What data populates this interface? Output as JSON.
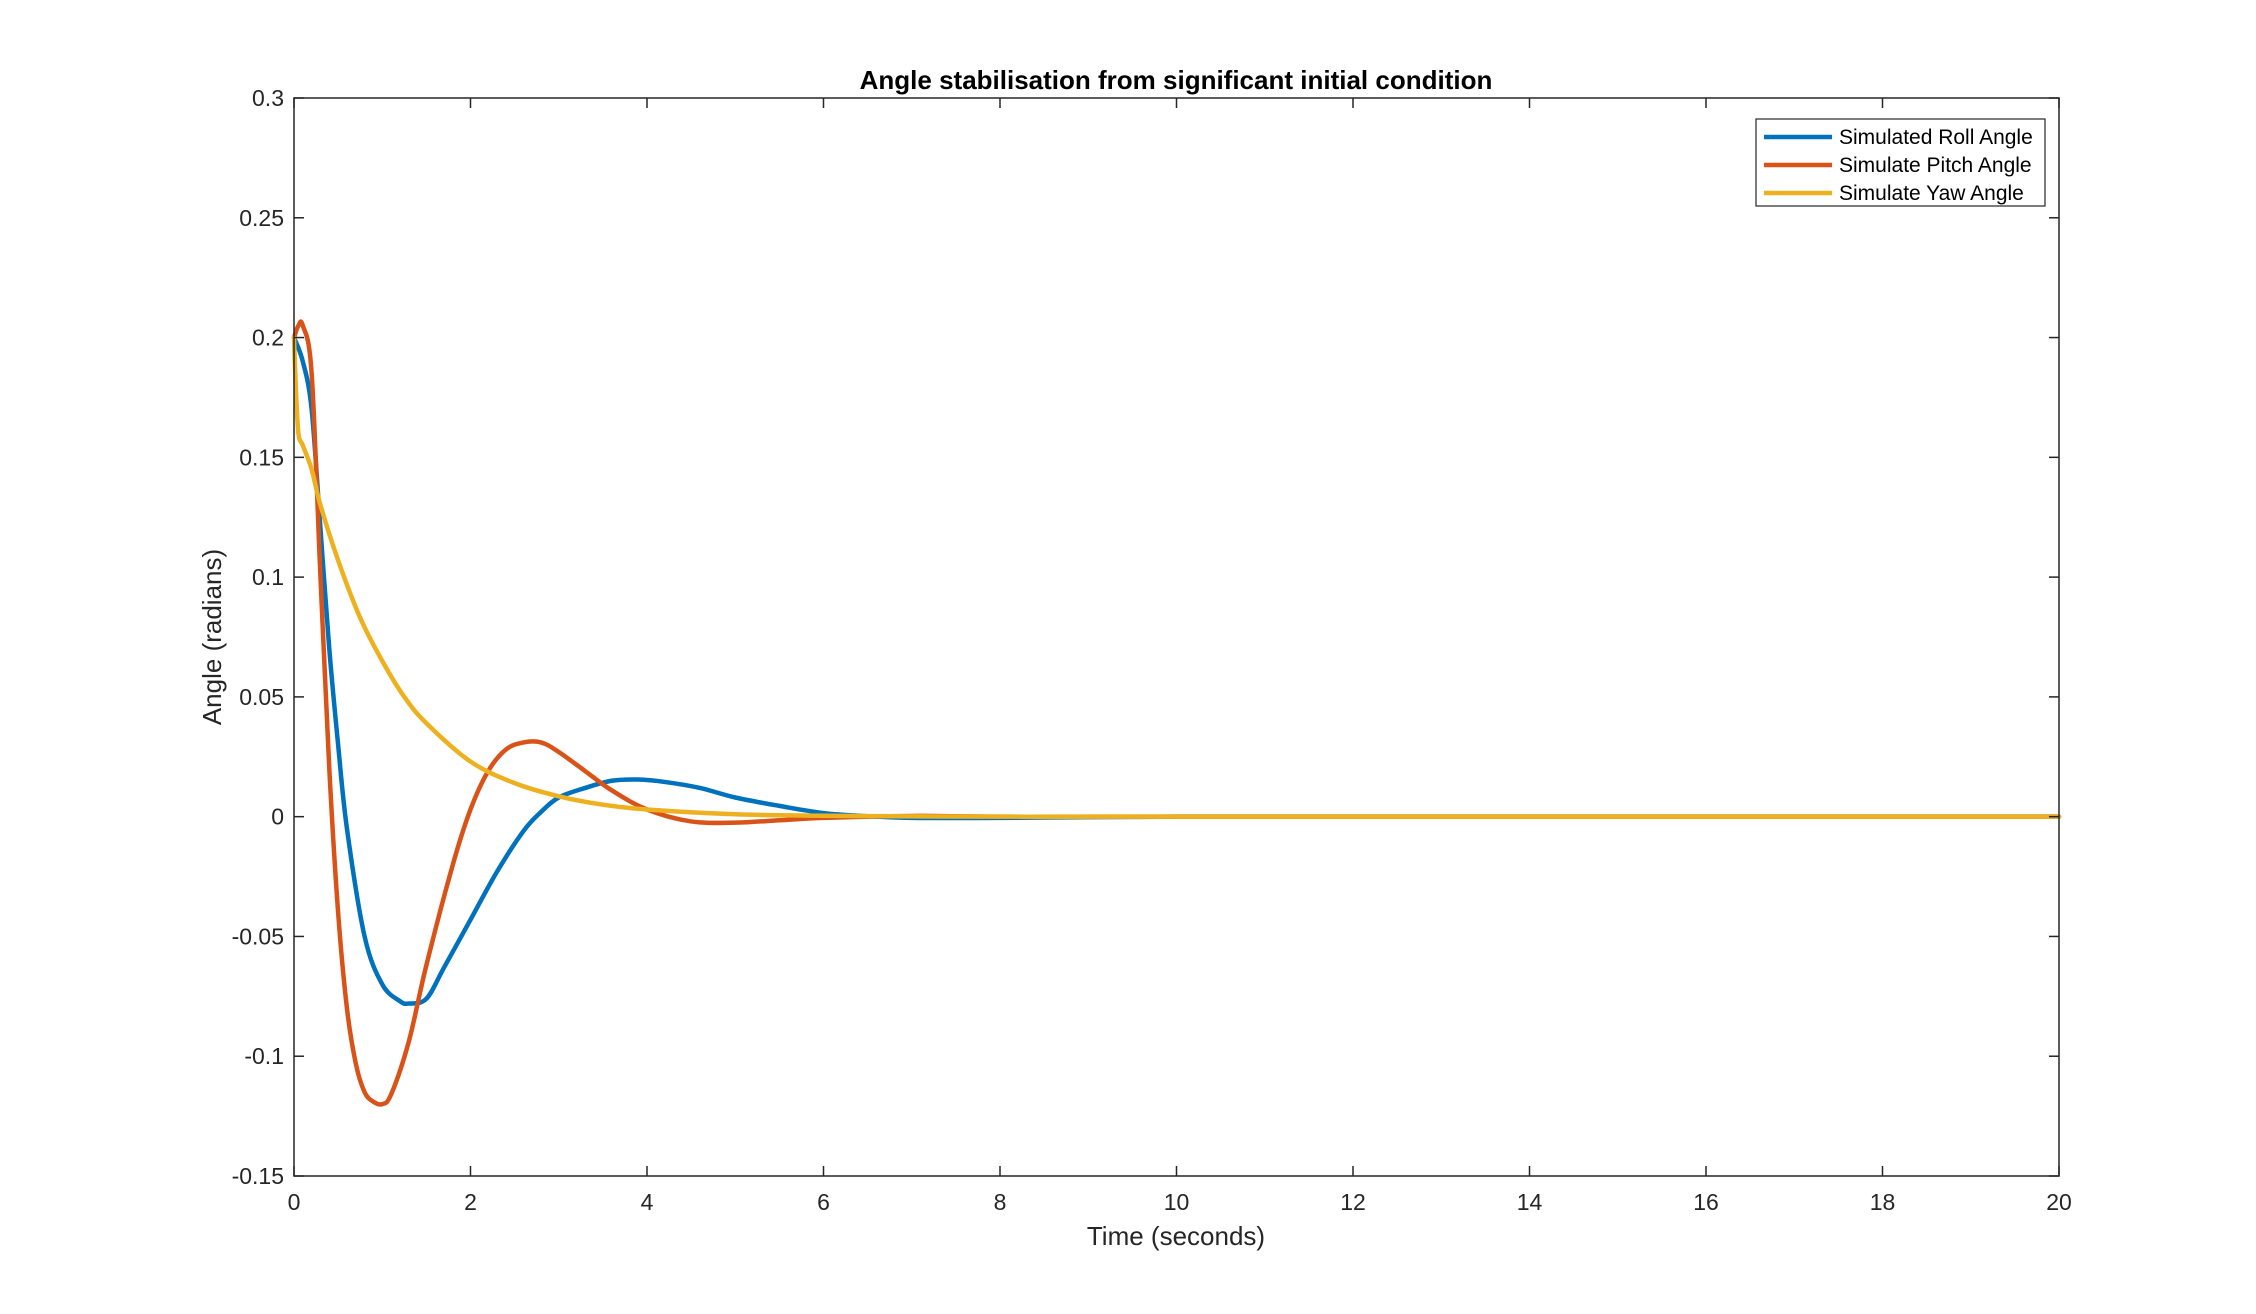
{
  "chart_data": {
    "type": "line",
    "title": "Angle stabilisation from significant initial condition",
    "xlabel": "Time (seconds)",
    "ylabel": "Angle (radians)",
    "xlim": [
      0,
      20
    ],
    "ylim": [
      -0.15,
      0.3
    ],
    "xticks": [
      0,
      2,
      4,
      6,
      8,
      10,
      12,
      14,
      16,
      18,
      20
    ],
    "xtick_labels": [
      "0",
      "2",
      "4",
      "6",
      "8",
      "10",
      "12",
      "14",
      "16",
      "18",
      "20"
    ],
    "yticks": [
      -0.15,
      -0.1,
      -0.05,
      0,
      0.05,
      0.1,
      0.15,
      0.2,
      0.25,
      0.3
    ],
    "ytick_labels": [
      "-0.15",
      "-0.1",
      "-0.05",
      "0",
      "0.05",
      "0.1",
      "0.15",
      "0.2",
      "0.25",
      "0.3"
    ],
    "grid": false,
    "legend_position": "top-right",
    "series": [
      {
        "name": "Simulated Roll Angle",
        "color": "#0072BD",
        "x": [
          0,
          0.1,
          0.2,
          0.3,
          0.4,
          0.5,
          0.6,
          0.8,
          1.0,
          1.2,
          1.3,
          1.5,
          1.7,
          2.0,
          2.3,
          2.6,
          2.8,
          3.0,
          3.3,
          3.6,
          3.9,
          4.2,
          4.6,
          5.0,
          5.5,
          6.0,
          6.5,
          7.0,
          8.0,
          9.0,
          10.0,
          12.0,
          15.0,
          20.0
        ],
        "y": [
          0.2,
          0.19,
          0.17,
          0.12,
          0.07,
          0.03,
          -0.005,
          -0.05,
          -0.07,
          -0.077,
          -0.078,
          -0.076,
          -0.063,
          -0.043,
          -0.023,
          -0.006,
          0.002,
          0.008,
          0.012,
          0.015,
          0.0155,
          0.0145,
          0.012,
          0.008,
          0.0045,
          0.0015,
          0.0002,
          -0.0005,
          -0.0005,
          -0.0002,
          0,
          0,
          0,
          0
        ]
      },
      {
        "name": "Simulate Pitch Angle",
        "color": "#D95319",
        "x": [
          0,
          0.05,
          0.1,
          0.2,
          0.3,
          0.4,
          0.5,
          0.6,
          0.7,
          0.8,
          0.9,
          1.0,
          1.1,
          1.3,
          1.5,
          1.8,
          2.0,
          2.2,
          2.4,
          2.6,
          2.8,
          3.0,
          3.3,
          3.6,
          4.0,
          4.5,
          5.0,
          5.5,
          6.0,
          7.0,
          8.0,
          10.0,
          20.0
        ],
        "y": [
          0.2,
          0.205,
          0.205,
          0.185,
          0.1,
          0.02,
          -0.04,
          -0.08,
          -0.103,
          -0.115,
          -0.119,
          -0.12,
          -0.116,
          -0.094,
          -0.062,
          -0.02,
          0.003,
          0.019,
          0.028,
          0.031,
          0.031,
          0.027,
          0.019,
          0.011,
          0.003,
          -0.002,
          -0.0025,
          -0.0015,
          -0.0005,
          0.0003,
          0,
          0,
          0
        ]
      },
      {
        "name": "Simulate Yaw Angle",
        "color": "#EDB120",
        "x": [
          0,
          0.02,
          0.05,
          0.1,
          0.2,
          0.3,
          0.5,
          0.75,
          1.0,
          1.25,
          1.5,
          2.0,
          2.5,
          3.0,
          3.5,
          4.0,
          5.0,
          6.0,
          7.0,
          8.0,
          10.0,
          20.0
        ],
        "y": [
          0.2,
          0.18,
          0.16,
          0.155,
          0.145,
          0.13,
          0.107,
          0.083,
          0.065,
          0.05,
          0.039,
          0.023,
          0.014,
          0.0085,
          0.005,
          0.003,
          0.001,
          0.0004,
          0.0001,
          0,
          0,
          0
        ]
      }
    ]
  }
}
